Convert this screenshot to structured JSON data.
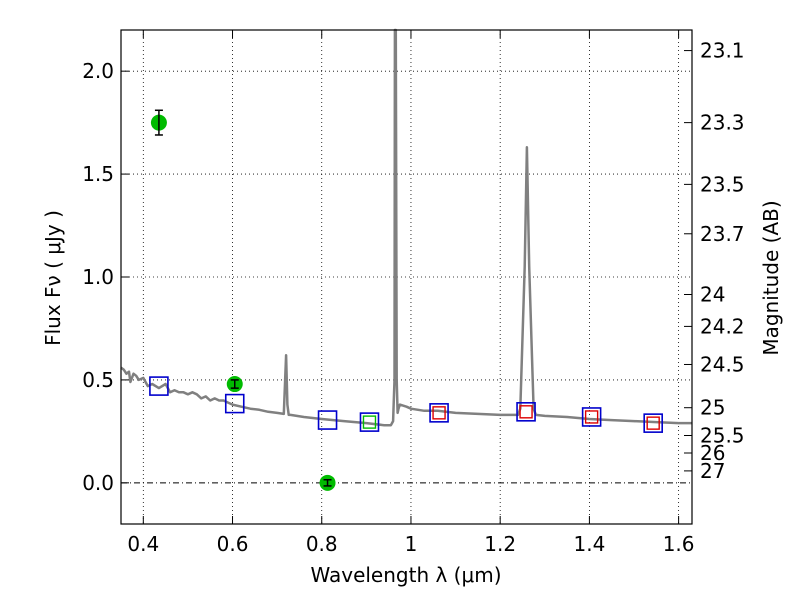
{
  "chart_data": {
    "type": "line",
    "xlabel": "Wavelength  λ (μm)",
    "ylabel": "Flux  Fν  ( μJy )",
    "ylabel_right": "Magnitude (AB)",
    "xlim": [
      0.35,
      1.63
    ],
    "ylim": [
      -0.2,
      2.2
    ],
    "grid": true,
    "x_ticks": [
      0.4,
      0.6,
      0.8,
      1.0,
      1.2,
      1.4,
      1.6
    ],
    "x_tick_labels": [
      "0.4",
      "0.6",
      "0.8",
      "1",
      "1.2",
      "1.4",
      "1.6"
    ],
    "y_ticks": [
      0.0,
      0.5,
      1.0,
      1.5,
      2.0
    ],
    "y_tick_labels": [
      "0.0",
      "0.5",
      "1.0",
      "1.5",
      "2.0"
    ],
    "right_axis_ticks": [
      {
        "label": "23.1",
        "flux": 2.1
      },
      {
        "label": "23.3",
        "flux": 1.75
      },
      {
        "label": "23.5",
        "flux": 1.45
      },
      {
        "label": "23.7",
        "flux": 1.21
      },
      {
        "label": "24",
        "flux": 0.915
      },
      {
        "label": "24.2",
        "flux": 0.76
      },
      {
        "label": "24.5",
        "flux": 0.575
      },
      {
        "label": "25",
        "flux": 0.365
      },
      {
        "label": "25.5",
        "flux": 0.23
      },
      {
        "label": "26",
        "flux": 0.145
      },
      {
        "label": "27",
        "flux": 0.058
      }
    ],
    "series": [
      {
        "style": "line",
        "color": "#808080",
        "x": [
          0.35,
          0.356,
          0.362,
          0.368,
          0.371,
          0.378,
          0.384,
          0.39,
          0.4,
          0.41,
          0.42,
          0.435,
          0.45,
          0.46,
          0.47,
          0.48,
          0.49,
          0.5,
          0.51,
          0.52,
          0.53,
          0.54,
          0.55,
          0.56,
          0.57,
          0.58,
          0.59,
          0.6,
          0.62,
          0.64,
          0.66,
          0.68,
          0.7,
          0.715,
          0.72,
          0.723,
          0.726,
          0.73,
          0.76,
          0.8,
          0.85,
          0.9,
          0.94,
          0.955,
          0.96,
          0.963,
          0.964,
          0.966,
          0.968,
          0.97,
          0.972,
          0.975,
          0.99,
          1.0,
          1.03,
          1.06,
          1.1,
          1.15,
          1.2,
          1.24,
          1.245,
          1.255,
          1.26,
          1.265,
          1.275,
          1.28,
          1.3,
          1.35,
          1.4,
          1.45,
          1.5,
          1.55,
          1.6,
          1.63
        ],
        "y": [
          0.56,
          0.55,
          0.53,
          0.54,
          0.49,
          0.53,
          0.52,
          0.5,
          0.51,
          0.47,
          0.48,
          0.46,
          0.48,
          0.44,
          0.45,
          0.44,
          0.44,
          0.43,
          0.44,
          0.43,
          0.41,
          0.42,
          0.4,
          0.41,
          0.4,
          0.4,
          0.39,
          0.38,
          0.37,
          0.36,
          0.355,
          0.345,
          0.34,
          0.335,
          0.62,
          0.38,
          0.33,
          0.33,
          0.32,
          0.31,
          0.3,
          0.29,
          0.28,
          0.28,
          0.3,
          0.5,
          2.2,
          2.2,
          0.5,
          0.34,
          0.36,
          0.38,
          0.37,
          0.36,
          0.35,
          0.35,
          0.34,
          0.335,
          0.33,
          0.33,
          0.36,
          1.05,
          1.63,
          1.05,
          0.36,
          0.33,
          0.325,
          0.32,
          0.31,
          0.305,
          0.3,
          0.295,
          0.29,
          0.29
        ]
      },
      {
        "style": "points",
        "color": "#00bb00",
        "x": [
          0.435,
          0.605,
          0.813
        ],
        "y": [
          1.75,
          0.48,
          0.0
        ],
        "yerr": [
          0.06,
          0.02,
          0.015
        ]
      },
      {
        "style": "squares",
        "color": "#0000cc",
        "x": [
          0.435,
          0.605,
          0.813,
          0.907,
          1.063,
          1.258,
          1.405,
          1.543
        ],
        "y": [
          0.47,
          0.385,
          0.305,
          0.295,
          0.34,
          0.345,
          0.32,
          0.29
        ]
      },
      {
        "style": "squares",
        "color": "#dd0000",
        "x": [
          1.063,
          1.258,
          1.405,
          1.543
        ],
        "y": [
          0.34,
          0.345,
          0.32,
          0.29
        ]
      },
      {
        "style": "squares",
        "color": "#00bb00",
        "x": [
          0.907
        ],
        "y": [
          0.295
        ]
      }
    ]
  }
}
